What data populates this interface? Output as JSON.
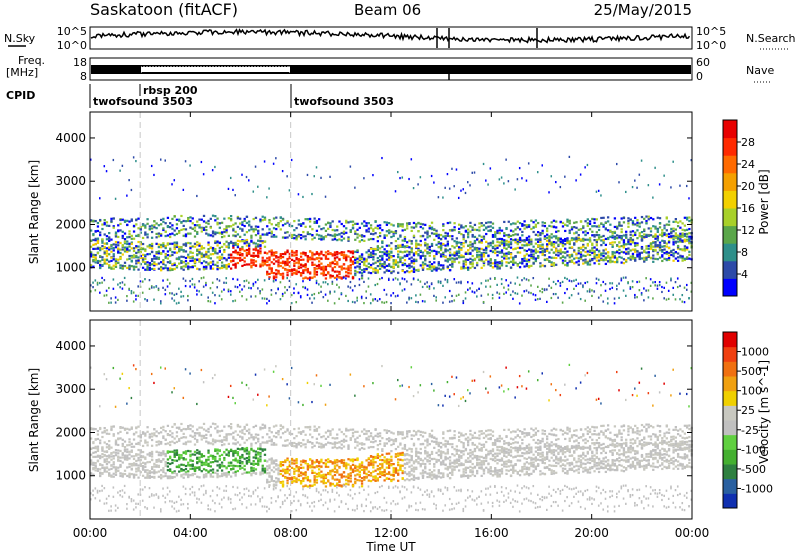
{
  "header": {
    "station": "Saskatoon (fitACF)",
    "beam": "Beam 06",
    "date": "25/May/2015"
  },
  "noise_panel": {
    "left_label": "N.Sky",
    "right_label": "N.Search",
    "left_ticks": [
      "10^5",
      "10^0"
    ],
    "right_ticks": [
      "10^5",
      "10^0"
    ]
  },
  "freq_panel": {
    "left_label_1": "Freq.",
    "left_label_2": "[MHz]",
    "right_label": "Nave",
    "left_ticks": [
      "18",
      "8"
    ],
    "right_ticks": [
      "60",
      "0"
    ]
  },
  "cpid": {
    "label": "CPID",
    "segments": [
      {
        "name": "twofsound 3503",
        "start_hour": 0
      },
      {
        "name": "rbsp 200",
        "start_hour": 2
      },
      {
        "name": "twofsound 3503",
        "start_hour": 8
      }
    ]
  },
  "time_axis": {
    "label": "Time UT",
    "ticks": [
      "00:00",
      "04:00",
      "08:00",
      "12:00",
      "16:00",
      "20:00",
      "00:00"
    ]
  },
  "chart_data": [
    {
      "type": "heatmap",
      "title": "",
      "xlabel": "Time UT",
      "ylabel": "Slant Range [km]",
      "xlim": [
        0,
        24
      ],
      "ylim": [
        0,
        4600
      ],
      "yticks": [
        "1000",
        "2000",
        "3000",
        "4000"
      ],
      "colorbar": {
        "label": "Power [dB]",
        "ticks": [
          "28",
          "24",
          "20",
          "16",
          "12",
          "8",
          "4"
        ],
        "colors": [
          "#0000ff",
          "#2d4aa8",
          "#2e8f8a",
          "#5aa64a",
          "#a8d02a",
          "#f2d000",
          "#f4a000",
          "#ff6a00",
          "#ff2a00",
          "#e80000"
        ]
      }
    },
    {
      "type": "heatmap",
      "title": "",
      "xlabel": "Time UT",
      "ylabel": "Slant Range [km]",
      "xlim": [
        0,
        24
      ],
      "ylim": [
        0,
        4600
      ],
      "yticks": [
        "1000",
        "2000",
        "3000",
        "4000"
      ],
      "colorbar": {
        "label": "Velocity [m s^-1]",
        "ticks": [
          "1000",
          "500",
          "100",
          "25",
          "-25",
          "-100",
          "-500",
          "-1000"
        ],
        "colors": [
          "#1030b0",
          "#2a60a0",
          "#2e8040",
          "#44b030",
          "#60d040",
          "#c0c0c0",
          "#c8c8c0",
          "#f0d000",
          "#f0a010",
          "#f07010",
          "#f04010",
          "#e00000"
        ]
      }
    }
  ]
}
